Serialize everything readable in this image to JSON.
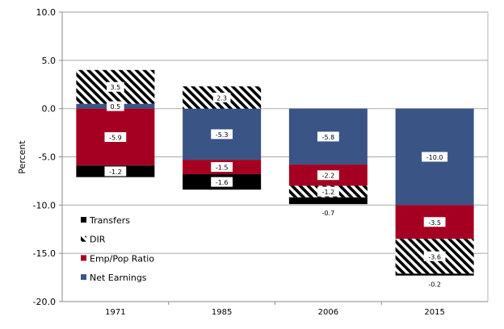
{
  "chart_data": {
    "type": "bar",
    "stacked": true,
    "title": "",
    "xlabel": "",
    "ylabel": "Percent",
    "ylim": [
      -20,
      10
    ],
    "yticks": [
      "10.0",
      "5.0",
      "0.0",
      "-5.0",
      "-10.0",
      "-15.0",
      "-20.0"
    ],
    "ytick_values": [
      10,
      5,
      0,
      -5,
      -10,
      -15,
      -20
    ],
    "grid": true,
    "legend": "inside-bottom-left",
    "categories": [
      "1971",
      "1985",
      "2006",
      "2015"
    ],
    "series": [
      {
        "name": "Net Earnings",
        "color": "#3A5486",
        "pattern": "solid",
        "values": [
          0.5,
          -5.3,
          -5.8,
          -10.0
        ],
        "labels": [
          "0.5",
          "-5.3",
          "-5.8",
          "-10.0"
        ]
      },
      {
        "name": "Emp/Pop Ratio",
        "color": "#A50021",
        "pattern": "solid",
        "values": [
          -5.9,
          -1.5,
          -2.2,
          -3.5
        ],
        "labels": [
          "-5.9",
          "-1.5",
          "-2.2",
          "-3.5"
        ]
      },
      {
        "name": "DIR",
        "color": "#000000",
        "pattern": "hatch",
        "values": [
          3.5,
          2.3,
          -1.2,
          -3.6
        ],
        "labels": [
          "3.5",
          "2.3",
          "-1.2",
          "-3.6"
        ]
      },
      {
        "name": "Transfers",
        "color": "#000000",
        "pattern": "solid",
        "values": [
          -1.2,
          -1.6,
          -0.7,
          -0.2
        ],
        "labels": [
          "-1.2",
          "-1.6",
          "-0.7",
          "-0.2"
        ]
      }
    ],
    "legend_order": [
      "Transfers",
      "DIR",
      "Emp/Pop Ratio",
      "Net Earnings"
    ]
  }
}
